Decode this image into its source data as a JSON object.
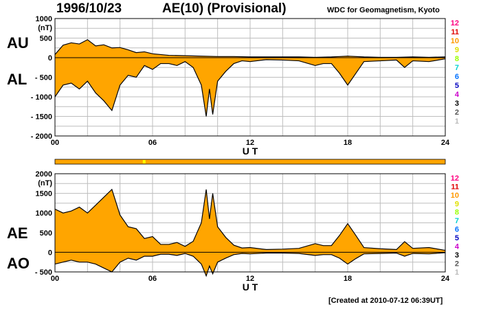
{
  "header": {
    "date": "1996/10/23",
    "index_title": "AE(10) (Provisional)",
    "source": "WDC for Geomagnetism, Kyoto"
  },
  "footer": {
    "created": "[Created at 2010-07-12 06:39UT]"
  },
  "colors": {
    "fill": "#ffa500",
    "envelope": "#000000",
    "grid": "#bdbdbd",
    "quality_bar": "#ffa500",
    "quality_highlight": "#ffff00"
  },
  "station_scale": {
    "labels": [
      "12",
      "11",
      "10",
      "9",
      "8",
      "7",
      "6",
      "5",
      "4",
      "3",
      "2",
      "1"
    ],
    "colors": [
      "#ff0080",
      "#e00000",
      "#ff9900",
      "#e0e000",
      "#99ff00",
      "#00d0d0",
      "#0070ff",
      "#0000c0",
      "#cc00cc",
      "#000000",
      "#555555",
      "#bbbbbb"
    ]
  },
  "chart_data": [
    {
      "type": "area",
      "series": [
        {
          "name": "AU",
          "x": [
            0,
            0.5,
            1,
            1.5,
            2,
            2.5,
            3,
            3.5,
            4,
            4.5,
            5,
            5.5,
            6,
            7,
            8,
            9,
            10,
            11,
            12,
            13,
            14,
            15,
            16,
            17,
            17.5,
            18,
            19,
            20,
            21,
            22,
            23,
            24
          ],
          "values": [
            80,
            320,
            380,
            350,
            460,
            300,
            330,
            250,
            260,
            200,
            130,
            150,
            100,
            60,
            50,
            40,
            30,
            30,
            20,
            20,
            20,
            20,
            10,
            20,
            30,
            40,
            20,
            10,
            10,
            20,
            10,
            20
          ]
        },
        {
          "name": "AL",
          "x": [
            0,
            0.5,
            1,
            1.5,
            2,
            2.5,
            3,
            3.5,
            4,
            4.5,
            5,
            5.5,
            6,
            6.5,
            7,
            7.5,
            8,
            8.5,
            9,
            9.3,
            9.5,
            9.7,
            10,
            10.5,
            11,
            11.5,
            12,
            13,
            14,
            15,
            16,
            16.5,
            17,
            17.5,
            18,
            18.5,
            19,
            20,
            21,
            21.5,
            22,
            23,
            24
          ],
          "values": [
            -1000,
            -700,
            -650,
            -800,
            -600,
            -900,
            -1100,
            -1350,
            -700,
            -450,
            -500,
            -200,
            -300,
            -150,
            -150,
            -200,
            -100,
            -250,
            -700,
            -1500,
            -800,
            -1450,
            -600,
            -350,
            -150,
            -80,
            -100,
            -50,
            -60,
            -80,
            -200,
            -150,
            -150,
            -400,
            -700,
            -400,
            -100,
            -80,
            -60,
            -250,
            -80,
            -100,
            -30
          ]
        }
      ],
      "ylim": [
        -2000,
        1000
      ],
      "yticks": [
        "1000",
        "500",
        "0",
        "- 500",
        "- 1000",
        "- 1500",
        "- 2000"
      ],
      "xticks": [
        "00",
        "06",
        "12",
        "18",
        "24"
      ],
      "xlabel": "U T",
      "ylabel": "(nT)",
      "side_labels": [
        "AU",
        "AL"
      ]
    },
    {
      "type": "area",
      "series": [
        {
          "name": "AE",
          "x": [
            0,
            0.5,
            1,
            1.5,
            2,
            2.5,
            3,
            3.5,
            4,
            4.5,
            5,
            5.5,
            6,
            6.5,
            7,
            7.5,
            8,
            8.5,
            9,
            9.3,
            9.5,
            9.7,
            10,
            10.5,
            11,
            11.5,
            12,
            13,
            14,
            15,
            16,
            16.5,
            17,
            17.5,
            18,
            18.5,
            19,
            20,
            21,
            21.5,
            22,
            23,
            24
          ],
          "values": [
            1100,
            1000,
            1050,
            1150,
            1000,
            1200,
            1400,
            1600,
            950,
            650,
            600,
            350,
            400,
            200,
            200,
            250,
            150,
            280,
            750,
            1600,
            850,
            1500,
            650,
            380,
            180,
            110,
            120,
            70,
            80,
            100,
            220,
            170,
            170,
            430,
            730,
            430,
            120,
            90,
            70,
            270,
            100,
            120,
            50
          ]
        },
        {
          "name": "AO",
          "x": [
            0,
            0.5,
            1,
            1.5,
            2,
            2.5,
            3,
            3.5,
            4,
            4.5,
            5,
            5.5,
            6,
            6.5,
            7,
            7.5,
            8,
            8.5,
            9,
            9.3,
            9.5,
            9.7,
            10,
            10.5,
            11,
            11.5,
            12,
            13,
            14,
            15,
            16,
            16.5,
            17,
            17.5,
            18,
            18.5,
            19,
            20,
            21,
            21.5,
            22,
            23,
            24
          ],
          "values": [
            -300,
            -250,
            -200,
            -250,
            -250,
            -300,
            -400,
            -500,
            -250,
            -150,
            -200,
            -100,
            -100,
            -50,
            -50,
            -80,
            -30,
            -100,
            -300,
            -600,
            -350,
            -550,
            -250,
            -150,
            -60,
            -30,
            -40,
            -20,
            -20,
            -30,
            -80,
            -60,
            -60,
            -150,
            -300,
            -160,
            -40,
            -30,
            -20,
            -100,
            -30,
            -40,
            -10
          ]
        }
      ],
      "ylim": [
        -500,
        2000
      ],
      "yticks": [
        "2000",
        "1500",
        "1000",
        "500",
        "0",
        "- 500"
      ],
      "xticks": [
        "00",
        "06",
        "12",
        "18",
        "24"
      ],
      "xlabel": "U T",
      "ylabel": "(nT)",
      "side_labels": [
        "AE",
        "AO"
      ]
    }
  ]
}
